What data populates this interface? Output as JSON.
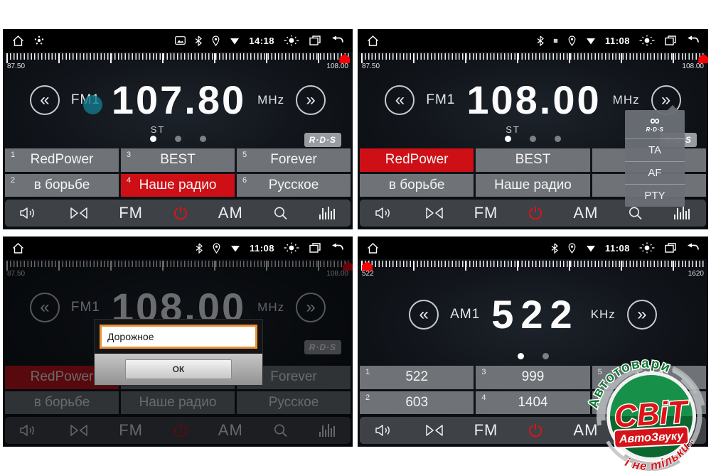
{
  "icons": {
    "prev_chevron": "«",
    "next_chevron": "»",
    "rds_infinity": "∞"
  },
  "shared": {
    "fm": "FM",
    "am": "AM",
    "rds_badge": "R·D·S"
  },
  "menu": {
    "rds_caption": "R·D·S",
    "items": [
      {
        "label": "TA"
      },
      {
        "label": "AF"
      },
      {
        "label": "PTY"
      }
    ]
  },
  "dialog": {
    "input_value": "Дорожное",
    "ok_label": "ОК"
  },
  "logo": {
    "arc_top": "Автотовари",
    "title": "СВіТ",
    "box": "АвтоЗвуку",
    "arc_bottom": "і не тільки..."
  },
  "panels": [
    {
      "time": "14:18",
      "scale_min": "87.50",
      "scale_max": "108.00",
      "marker_left": "96.2%",
      "band": "FM1",
      "freq": "107.80",
      "unit": "MHz",
      "stereo": "ST",
      "presets": [
        {
          "num": "1",
          "name": "RedPower",
          "active": false
        },
        {
          "num": "2",
          "name": "в борьбе",
          "active": false
        },
        {
          "num": "3",
          "name": "BEST",
          "active": false
        },
        {
          "num": "4",
          "name": "Наше радио",
          "active": true
        },
        {
          "num": "5",
          "name": "Forever",
          "active": false
        },
        {
          "num": "6",
          "name": "Русское",
          "active": false
        }
      ]
    },
    {
      "time": "11:08",
      "scale_min": "87.50",
      "scale_max": "108.00",
      "marker_left": "97.2%",
      "band": "FM1",
      "freq": "108.00",
      "unit": "MHz",
      "stereo": "ST",
      "presets": [
        {
          "num": "",
          "name": "RedPower",
          "active": true
        },
        {
          "num": "",
          "name": "в борьбе",
          "active": false
        },
        {
          "num": "",
          "name": "BEST",
          "active": false
        },
        {
          "num": "",
          "name": "Наше радио",
          "active": false
        },
        {
          "num": "",
          "name": "",
          "active": false
        },
        {
          "num": "",
          "name": "",
          "active": false
        }
      ]
    },
    {
      "time": "11:08",
      "scale_min": "87.50",
      "scale_max": "108.00",
      "marker_left": "97.2%",
      "band": "FM1",
      "freq": "108.00",
      "unit": "MHz",
      "stereo": "",
      "presets": [
        {
          "num": "",
          "name": "RedPower",
          "active": true
        },
        {
          "num": "",
          "name": "в борьбе",
          "active": false
        },
        {
          "num": "",
          "name": "BEST",
          "active": false
        },
        {
          "num": "",
          "name": "Наше радио",
          "active": false
        },
        {
          "num": "",
          "name": "Forever",
          "active": false
        },
        {
          "num": "",
          "name": "Русское",
          "active": false
        }
      ]
    },
    {
      "time": "11:08",
      "scale_min": "522",
      "scale_max": "1620",
      "marker_left": "1.2%",
      "band": "AM1",
      "freq": "522",
      "unit": "KHz",
      "stereo": "",
      "presets": [
        {
          "num": "1",
          "name": "522",
          "active": false
        },
        {
          "num": "2",
          "name": "603",
          "active": false
        },
        {
          "num": "3",
          "name": "999",
          "active": false
        },
        {
          "num": "4",
          "name": "1404",
          "active": false
        },
        {
          "num": "5",
          "name": "1620",
          "active": false
        },
        {
          "num": "6",
          "name": "",
          "active": false
        }
      ]
    }
  ]
}
